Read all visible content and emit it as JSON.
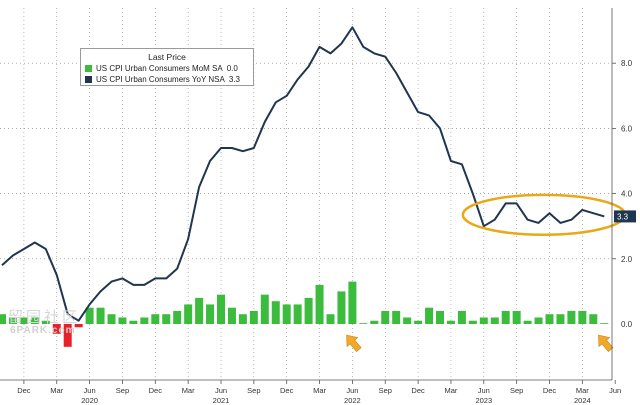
{
  "legend": {
    "title": "Last Price",
    "items": [
      {
        "label": "US CPI Urban Consumers MoM SA",
        "value": "0.0",
        "color": "#3cbc3c"
      },
      {
        "label": "US CPI Urban Consumers YoY NSA",
        "value": "3.3",
        "color": "#1f3550"
      }
    ]
  },
  "watermark": {
    "glyphs": "留园社区",
    "text": "6PARK.com"
  },
  "colors": {
    "line": "#1f3550",
    "bar_positive": "#3cbc3c",
    "bar_negative": "#e8202a",
    "highlight_ellipse": "#e8a817",
    "arrow": "#f2a92a",
    "axis_text": "#333333",
    "grid": "#8a8a8a"
  },
  "chart_data": {
    "type": "line+bar",
    "series": [
      {
        "name": "US CPI Urban Consumers YoY NSA",
        "type": "line",
        "color": "#1f3550",
        "last_value": "3.3",
        "x": [
          "2019-10",
          "2019-11",
          "2019-12",
          "2020-01",
          "2020-02",
          "2020-03",
          "2020-04",
          "2020-05",
          "2020-06",
          "2020-07",
          "2020-08",
          "2020-09",
          "2020-10",
          "2020-11",
          "2020-12",
          "2021-01",
          "2021-02",
          "2021-03",
          "2021-04",
          "2021-05",
          "2021-06",
          "2021-07",
          "2021-08",
          "2021-09",
          "2021-10",
          "2021-11",
          "2021-12",
          "2022-01",
          "2022-02",
          "2022-03",
          "2022-04",
          "2022-05",
          "2022-06",
          "2022-07",
          "2022-08",
          "2022-09",
          "2022-10",
          "2022-11",
          "2022-12",
          "2023-01",
          "2023-02",
          "2023-03",
          "2023-04",
          "2023-05",
          "2023-06",
          "2023-07",
          "2023-08",
          "2023-09",
          "2023-10",
          "2023-11",
          "2023-12",
          "2024-01",
          "2024-02",
          "2024-03",
          "2024-04",
          "2024-05"
        ],
        "values": [
          1.8,
          2.1,
          2.3,
          2.5,
          2.3,
          1.5,
          0.3,
          0.1,
          0.6,
          1.0,
          1.3,
          1.4,
          1.2,
          1.2,
          1.4,
          1.4,
          1.7,
          2.6,
          4.2,
          5.0,
          5.4,
          5.4,
          5.3,
          5.4,
          6.2,
          6.8,
          7.0,
          7.5,
          7.9,
          8.5,
          8.3,
          8.6,
          9.1,
          8.5,
          8.3,
          8.2,
          7.7,
          7.1,
          6.5,
          6.4,
          6.0,
          5.0,
          4.9,
          4.0,
          3.0,
          3.2,
          3.7,
          3.7,
          3.2,
          3.1,
          3.4,
          3.1,
          3.2,
          3.5,
          3.4,
          3.3
        ]
      },
      {
        "name": "US CPI Urban Consumers MoM SA",
        "type": "bar",
        "color": "#3cbc3c",
        "negative_color": "#e8202a",
        "last_value": "0.0",
        "x": [
          "2019-10",
          "2019-11",
          "2019-12",
          "2020-01",
          "2020-02",
          "2020-03",
          "2020-04",
          "2020-05",
          "2020-06",
          "2020-07",
          "2020-08",
          "2020-09",
          "2020-10",
          "2020-11",
          "2020-12",
          "2021-01",
          "2021-02",
          "2021-03",
          "2021-04",
          "2021-05",
          "2021-06",
          "2021-07",
          "2021-08",
          "2021-09",
          "2021-10",
          "2021-11",
          "2021-12",
          "2022-01",
          "2022-02",
          "2022-03",
          "2022-04",
          "2022-05",
          "2022-06",
          "2022-07",
          "2022-08",
          "2022-09",
          "2022-10",
          "2022-11",
          "2022-12",
          "2023-01",
          "2023-02",
          "2023-03",
          "2023-04",
          "2023-05",
          "2023-06",
          "2023-07",
          "2023-08",
          "2023-09",
          "2023-10",
          "2023-11",
          "2023-12",
          "2024-01",
          "2024-02",
          "2024-03",
          "2024-04",
          "2024-05"
        ],
        "values": [
          0.3,
          0.2,
          0.2,
          0.2,
          0.1,
          -0.3,
          -0.7,
          -0.1,
          0.5,
          0.5,
          0.3,
          0.2,
          0.1,
          0.2,
          0.3,
          0.3,
          0.4,
          0.6,
          0.8,
          0.6,
          0.9,
          0.5,
          0.3,
          0.4,
          0.9,
          0.7,
          0.6,
          0.6,
          0.8,
          1.2,
          0.3,
          1.0,
          1.3,
          0.0,
          0.1,
          0.4,
          0.4,
          0.2,
          0.1,
          0.5,
          0.4,
          0.1,
          0.4,
          0.1,
          0.2,
          0.2,
          0.4,
          0.4,
          0.1,
          0.2,
          0.3,
          0.3,
          0.4,
          0.4,
          0.3,
          0.0
        ]
      }
    ],
    "y_axis": {
      "position": "right",
      "ticks": [
        "2.0",
        "4.0",
        "6.0",
        "8.0"
      ],
      "zero_label": "0.0",
      "ylim": [
        -0.9,
        9.9
      ]
    },
    "x_axis": {
      "range": [
        "2019-10",
        "2024-06"
      ],
      "month_ticks": [
        {
          "date": "2019-12",
          "label": "Dec"
        },
        {
          "date": "2020-03",
          "label": "Mar"
        },
        {
          "date": "2020-06",
          "label": "Jun"
        },
        {
          "date": "2020-09",
          "label": "Sep"
        },
        {
          "date": "2020-12",
          "label": "Dec"
        },
        {
          "date": "2021-03",
          "label": "Mar"
        },
        {
          "date": "2021-06",
          "label": "Jun"
        },
        {
          "date": "2021-09",
          "label": "Sep"
        },
        {
          "date": "2021-12",
          "label": "Dec"
        },
        {
          "date": "2022-03",
          "label": "Mar"
        },
        {
          "date": "2022-06",
          "label": "Jun"
        },
        {
          "date": "2022-09",
          "label": "Sep"
        },
        {
          "date": "2022-12",
          "label": "Dec"
        },
        {
          "date": "2023-03",
          "label": "Mar"
        },
        {
          "date": "2023-06",
          "label": "Jun"
        },
        {
          "date": "2023-09",
          "label": "Sep"
        },
        {
          "date": "2023-12",
          "label": "Dec"
        },
        {
          "date": "2024-03",
          "label": "Mar"
        },
        {
          "date": "2024-06",
          "label": "Jun"
        }
      ],
      "year_ticks": [
        {
          "date": "2020-06",
          "label": "2020"
        },
        {
          "date": "2021-06",
          "label": "2021"
        },
        {
          "date": "2022-06",
          "label": "2022"
        },
        {
          "date": "2023-06",
          "label": "2023"
        },
        {
          "date": "2024-03",
          "label": "2024"
        }
      ]
    },
    "grid": true,
    "legend_placement": "top-left",
    "annotations": [
      {
        "type": "ellipse",
        "from": "2023-05",
        "to": "2024-06",
        "y_range": [
          2.8,
          3.9
        ],
        "color": "#e8a817"
      },
      {
        "type": "arrow",
        "date": "2022-06",
        "y": -0.5,
        "color": "#f2a92a"
      },
      {
        "type": "arrow",
        "date": "2024-05",
        "y": -0.5,
        "color": "#f2a92a"
      }
    ]
  }
}
